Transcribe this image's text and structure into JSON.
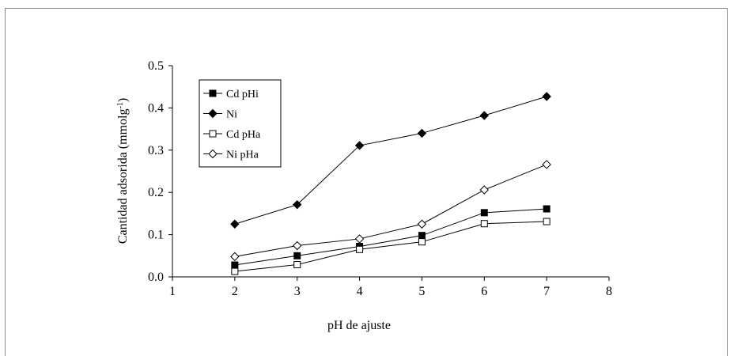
{
  "chart_data": {
    "type": "line",
    "xlabel": "pH de ajuste",
    "ylabel": "Cantidad adsorida (mmolg",
    "ylabel_sup": "-1",
    "ylabel_close": ")",
    "xlim": [
      1,
      8
    ],
    "ylim": [
      0,
      0.5
    ],
    "x_ticks": [
      "1",
      "2",
      "3",
      "4",
      "5",
      "6",
      "7",
      "8"
    ],
    "y_ticks": [
      "0.0",
      "0.1",
      "0.2",
      "0.3",
      "0.4",
      "0.5"
    ],
    "grid": false,
    "legend_position": "top-left",
    "series": [
      {
        "name": "Cd pHi",
        "marker": "square-filled",
        "x": [
          2,
          3,
          4,
          5,
          6,
          7
        ],
        "y": [
          0.028,
          0.05,
          0.072,
          0.098,
          0.152,
          0.161
        ]
      },
      {
        "name": "Ni",
        "marker": "diamond-filled",
        "x": [
          2,
          3,
          4,
          5,
          6,
          7
        ],
        "y": [
          0.125,
          0.171,
          0.311,
          0.34,
          0.382,
          0.427
        ]
      },
      {
        "name": "Cd pHa",
        "marker": "square-open",
        "x": [
          2,
          3,
          4,
          5,
          6,
          7
        ],
        "y": [
          0.013,
          0.029,
          0.065,
          0.083,
          0.126,
          0.131
        ]
      },
      {
        "name": "Ni pHa",
        "marker": "diamond-open",
        "x": [
          2,
          3,
          4,
          5,
          6,
          7
        ],
        "y": [
          0.048,
          0.074,
          0.09,
          0.125,
          0.206,
          0.266
        ]
      }
    ]
  }
}
